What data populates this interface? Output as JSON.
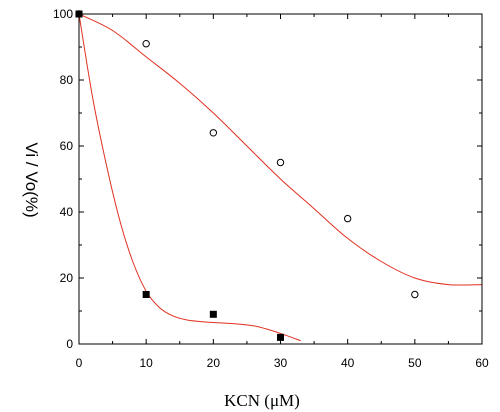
{
  "chart_data": {
    "type": "scatter",
    "title": "",
    "xlabel": "KCN    (μM)",
    "ylabel": "Vi / Vo(%)",
    "xlim": [
      0,
      60
    ],
    "ylim": [
      0,
      100
    ],
    "xticks": [
      0,
      10,
      20,
      30,
      40,
      50,
      60
    ],
    "yticks": [
      0,
      20,
      40,
      60,
      80,
      100
    ],
    "grid": false,
    "legend": "none",
    "series": [
      {
        "marker": "open-circle",
        "color": "#000000",
        "x": [
          0,
          10,
          20,
          30,
          40,
          50
        ],
        "y": [
          100,
          91,
          64,
          55,
          38,
          15
        ]
      },
      {
        "marker": "filled-square",
        "color": "#000000",
        "x": [
          0,
          10,
          20,
          30
        ],
        "y": [
          100,
          15,
          9,
          2
        ]
      }
    ],
    "fit_curves": [
      {
        "color": "#e03020",
        "x": [
          0,
          5,
          10,
          15,
          20,
          25,
          30,
          35,
          40,
          45,
          50,
          55,
          60
        ],
        "y": [
          100,
          95,
          87,
          79,
          70,
          60,
          50,
          41,
          32,
          25,
          20,
          18,
          18
        ]
      },
      {
        "color": "#e03020",
        "x": [
          0,
          2,
          4,
          6,
          8,
          10,
          12,
          14,
          16,
          18,
          20,
          22,
          24,
          26,
          28,
          30,
          33
        ],
        "y": [
          100,
          75,
          55,
          38,
          25,
          16,
          11,
          8.5,
          7.3,
          6.8,
          6.5,
          6.3,
          6,
          5.5,
          4.5,
          3.2,
          1
        ]
      }
    ]
  }
}
